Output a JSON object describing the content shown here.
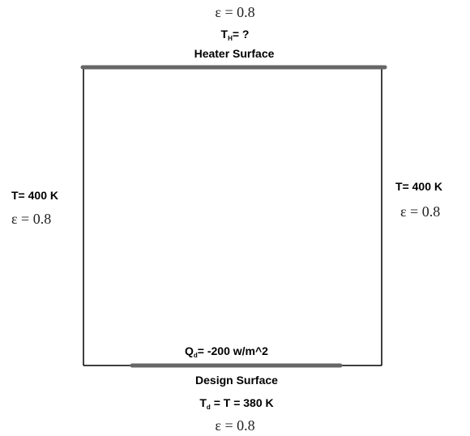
{
  "heater": {
    "emissivity": "ε = 0.8",
    "temperature": {
      "main": "T",
      "sub": "H",
      "rest": "= ?"
    },
    "label": "Heater Surface"
  },
  "left_wall": {
    "temperature": "T= 400 K",
    "emissivity": "ε = 0.8"
  },
  "right_wall": {
    "temperature": "T= 400 K",
    "emissivity": "ε = 0.8"
  },
  "design": {
    "heat_flux": {
      "main": "Q",
      "sub": "d",
      "rest": "= -200 w/m^2"
    },
    "label": "Design Surface",
    "temperature": {
      "main": "T",
      "sub": "d",
      "rest": " = T = 380 K"
    },
    "emissivity": "ε = 0.8"
  }
}
